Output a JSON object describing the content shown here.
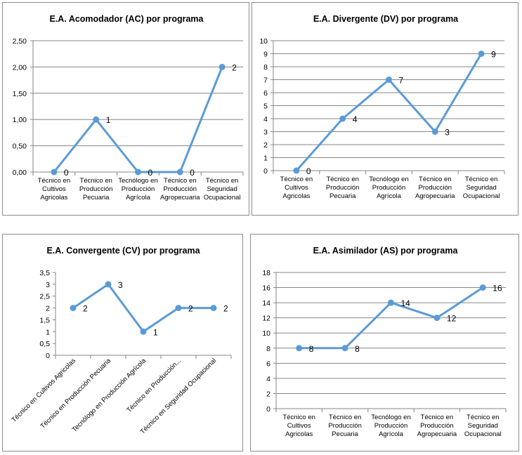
{
  "chart_data": [
    {
      "type": "line",
      "title": "E.A. Acomodador (AC) por programa",
      "categories": [
        [
          "Técnico en",
          "Cultivos",
          "Agricolas"
        ],
        [
          "Técnico en",
          "Producción",
          "Pecuaria"
        ],
        [
          "Tecnólogo en",
          "Producción",
          "Agrícola"
        ],
        [
          "Técnico en",
          "Producción",
          "Agropecuaria"
        ],
        [
          "Técnico en",
          "Seguridad",
          "Ocupacional"
        ]
      ],
      "values": [
        0,
        1,
        0,
        0,
        2
      ],
      "ylim": [
        0,
        2.5
      ],
      "ystep": 0.5,
      "ytick_labels": [
        "0,00",
        "0,50",
        "1,00",
        "1,50",
        "2,00",
        "2,50"
      ],
      "xlabel_rotation": 0,
      "grid": true,
      "color": "#5b9bd5"
    },
    {
      "type": "line",
      "title": "E.A. Divergente (DV) por programa",
      "categories": [
        [
          "Técnico en",
          "Cultivos",
          "Agricolas"
        ],
        [
          "Técnico en",
          "Producción",
          "Pecuaria"
        ],
        [
          "Tecnólogo en",
          "Producción",
          "Agrícola"
        ],
        [
          "Técnico en",
          "Producción",
          "Agropecuaria"
        ],
        [
          "Técnico en",
          "Seguridad",
          "Ocupacional"
        ]
      ],
      "values": [
        0,
        4,
        7,
        3,
        9
      ],
      "ylim": [
        0,
        10
      ],
      "ystep": 1,
      "ytick_labels": [
        "0",
        "1",
        "2",
        "3",
        "4",
        "5",
        "6",
        "7",
        "8",
        "9",
        "10"
      ],
      "xlabel_rotation": 0,
      "grid": true,
      "color": "#5b9bd5"
    },
    {
      "type": "line",
      "title": "E.A. Convergente  (CV) por programa",
      "categories": [
        [
          "Técnico en Cultivos Agricolas"
        ],
        [
          "Técnico en Producción Pecuaria"
        ],
        [
          "Tecnólogo en Producción Agrícola"
        ],
        [
          "Técnico en Producción..."
        ],
        [
          "Técnico en Seguridad Ocupacional"
        ]
      ],
      "values": [
        2,
        3,
        1,
        2,
        2
      ],
      "ylim": [
        0,
        3.5
      ],
      "ystep": 0.5,
      "ytick_labels": [
        "0",
        "0,5",
        "1",
        "1,5",
        "2",
        "2,5",
        "3",
        "3,5"
      ],
      "xlabel_rotation": -45,
      "grid": false,
      "color": "#5b9bd5"
    },
    {
      "type": "line",
      "title": "E.A. Asimilador (AS) por programa",
      "categories": [
        [
          "Técnico en",
          "Cultivos",
          "Agricolas"
        ],
        [
          "Técnico en",
          "Producción",
          "Pecuaria"
        ],
        [
          "Tecnólogo en",
          "Producción",
          "Agrícola"
        ],
        [
          "Técnico en",
          "Producción",
          "Agropecuaria"
        ],
        [
          "Técnico en",
          "Seguridad",
          "Ocupacional"
        ]
      ],
      "values": [
        8,
        8,
        14,
        12,
        16
      ],
      "ylim": [
        0,
        18
      ],
      "ystep": 2,
      "ytick_labels": [
        "0",
        "2",
        "4",
        "6",
        "8",
        "10",
        "12",
        "14",
        "16",
        "18"
      ],
      "xlabel_rotation": 0,
      "grid": true,
      "color": "#5b9bd5"
    }
  ]
}
